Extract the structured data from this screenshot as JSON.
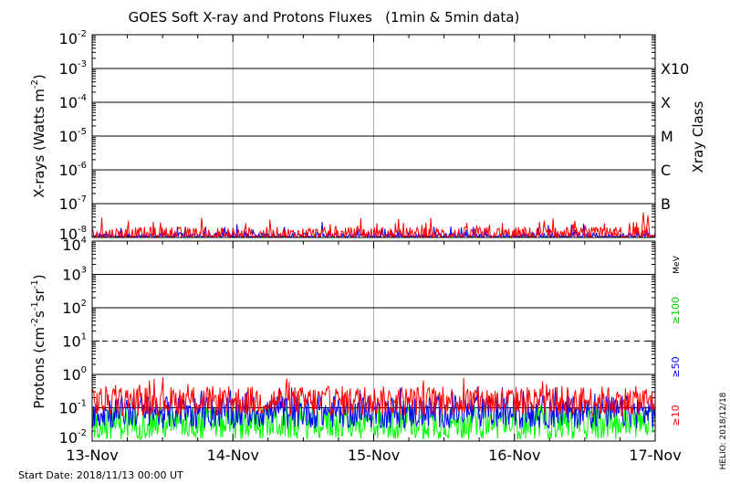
{
  "chart_data": [
    {
      "type": "line",
      "title": "GOES Soft X-ray and Protons Fluxes   (1min & 5min data)",
      "ylabel": "X-rays (Watts m",
      "ylabel_sup": "-2",
      "ylabel_close": ")",
      "yscale": "log",
      "ylim": [
        1e-08,
        0.01
      ],
      "y_ticks": [
        {
          "exp": "-2",
          "value": 0.01
        },
        {
          "exp": "-3",
          "value": 0.001
        },
        {
          "exp": "-4",
          "value": 0.0001
        },
        {
          "exp": "-5",
          "value": 1e-05
        },
        {
          "exp": "-6",
          "value": 1e-06
        },
        {
          "exp": "-7",
          "value": 1e-07
        },
        {
          "exp": "-8",
          "value": 1e-08
        }
      ],
      "xray_class_label": "Xray Class",
      "xray_classes": [
        {
          "label": "X10",
          "value": 0.001
        },
        {
          "label": "X",
          "value": 0.0001
        },
        {
          "label": "M",
          "value": 1e-05
        },
        {
          "label": "C",
          "value": 1e-06
        },
        {
          "label": "B",
          "value": 1e-07
        }
      ],
      "grid": true,
      "series": [
        {
          "color": "#ff0000",
          "baseline": 1.15e-08,
          "spread": 0.25,
          "spikes": [
            {
              "x": 0.2,
              "y": 1.9e-08
            },
            {
              "x": 0.86,
              "y": 1.8e-08
            },
            {
              "x": 0.93,
              "y": 2e-08
            },
            {
              "x": 0.966,
              "y": 2.1e-08
            },
            {
              "x": 0.979,
              "y": 5.5e-08
            },
            {
              "x": 0.987,
              "y": 4.5e-08
            }
          ]
        },
        {
          "color": "#0000ff",
          "baseline": 1e-08,
          "spread": 0.15,
          "spikes": []
        }
      ]
    },
    {
      "type": "line",
      "ylabel": "Protons (cm",
      "ylabel_sup1": "-2",
      "ylabel_mid": "s",
      "ylabel_sup2": "-1",
      "ylabel_mid2": "sr",
      "ylabel_sup3": "-1",
      "ylabel_close": ")",
      "yscale": "log",
      "ylim": [
        0.01,
        10000
      ],
      "y_ticks": [
        {
          "base": "10",
          "exp": "4",
          "value": 10000
        },
        {
          "base": "10",
          "exp": "3",
          "value": 1000
        },
        {
          "base": "10",
          "exp": "2",
          "value": 100
        },
        {
          "base": "10",
          "exp": "1",
          "value": 10
        },
        {
          "base": "10",
          "exp": "0",
          "value": 1
        },
        {
          "base": "10",
          "exp": "-1",
          "value": 0.1
        },
        {
          "base": "10",
          "exp": "-2",
          "value": 0.01
        }
      ],
      "threshold": {
        "value": 10,
        "style": "dashed"
      },
      "unit_label": "MeV",
      "energy_labels": [
        {
          "label": "≥100",
          "color": "#00cc00"
        },
        {
          "label": "≥50",
          "color": "#0000ff"
        },
        {
          "label": "≥10",
          "color": "#ff0000"
        }
      ],
      "grid": true,
      "series": [
        {
          "name": "≥10",
          "color": "#ff0000",
          "baseline": 0.16,
          "spread": 0.45
        },
        {
          "name": "≥50",
          "color": "#0000ff",
          "baseline": 0.075,
          "spread": 0.5
        },
        {
          "name": "≥100",
          "color": "#00ff00",
          "baseline": 0.035,
          "spread": 0.5
        }
      ]
    }
  ],
  "x_axis": {
    "ticks": [
      "13-Nov",
      "14-Nov",
      "15-Nov",
      "16-Nov",
      "17-Nov"
    ],
    "xlim": [
      "2018-11-13",
      "2018-11-17"
    ]
  },
  "footer": {
    "start_date": "Start Date: 2018/11/13 00:00 UT",
    "credit": "HELIO: 2018/12/18"
  }
}
